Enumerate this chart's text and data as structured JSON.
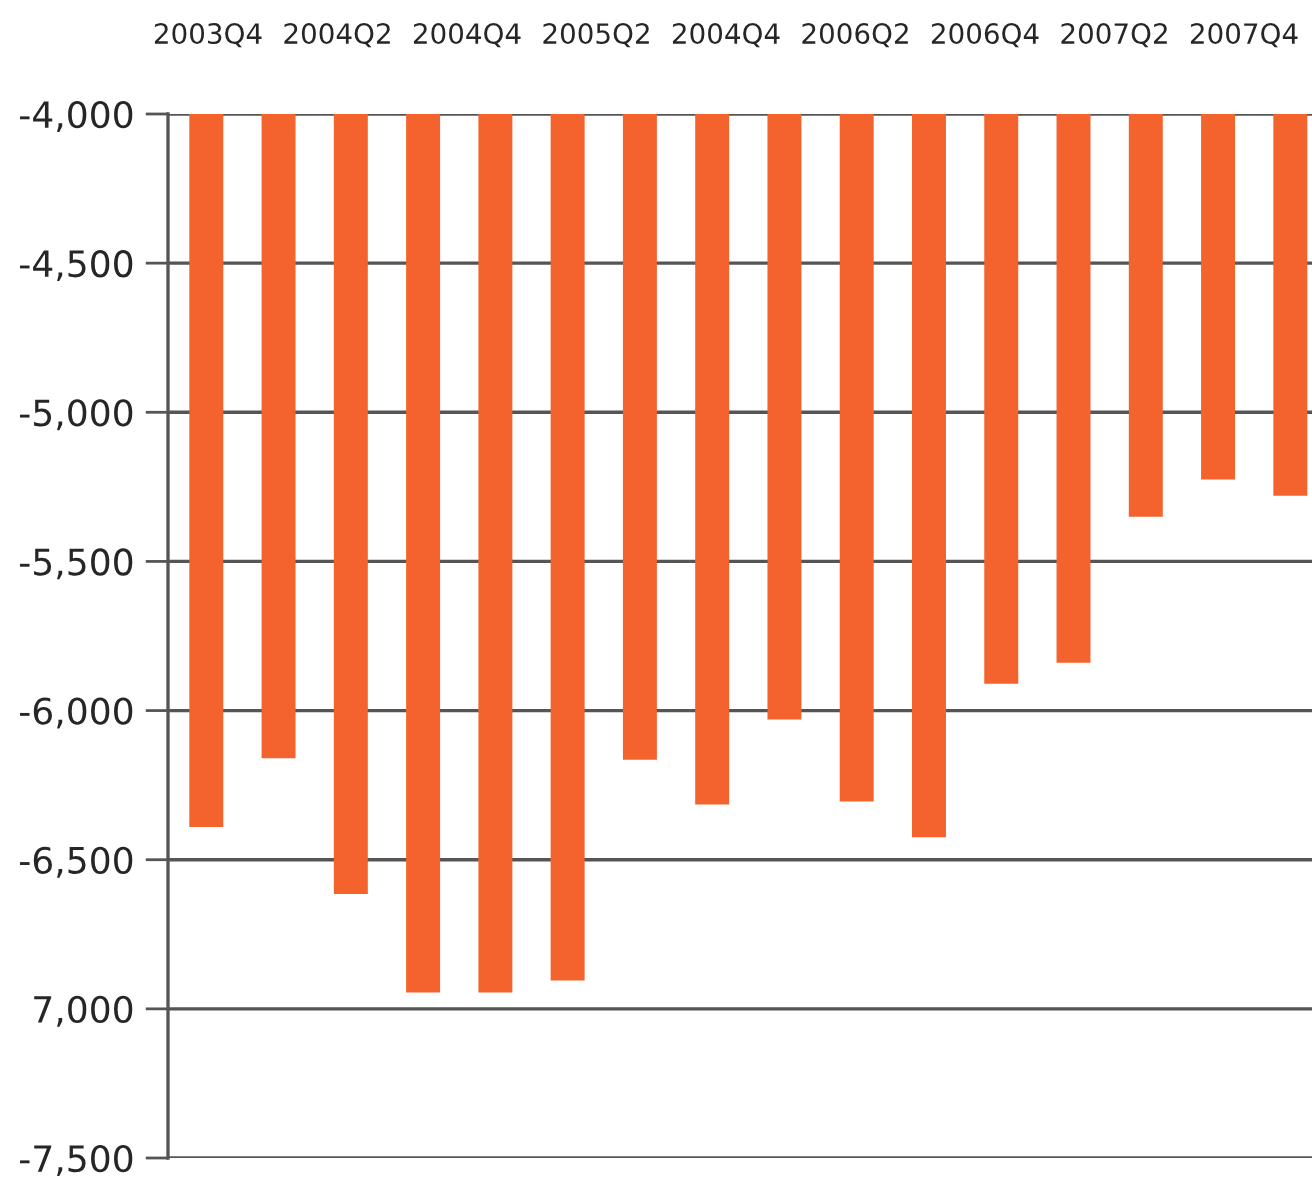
{
  "chart_data": {
    "type": "bar",
    "categories": [
      null,
      null,
      null,
      null,
      null,
      null,
      null,
      null,
      null,
      null,
      null,
      null,
      null,
      null,
      null,
      null
    ],
    "values": [
      -6390,
      -6160,
      -6615,
      -6945,
      -6945,
      -6905,
      -6165,
      -6315,
      -6030,
      -6305,
      -6425,
      -5910,
      -5840,
      -5350,
      -5225,
      -5280
    ],
    "color": "#f4622e",
    "ylim": [
      -7500,
      -4000
    ],
    "yticks": [
      {
        "value": -4000,
        "label": "-4,000"
      },
      {
        "value": -4500,
        "label": "-4,500"
      },
      {
        "value": -5000,
        "label": "-5,000"
      },
      {
        "value": -5500,
        "label": "-5,500"
      },
      {
        "value": -6000,
        "label": "-6,000"
      },
      {
        "value": -6500,
        "label": "-6,500"
      },
      {
        "value": -7000,
        "label": "7,000"
      },
      {
        "value": -7500,
        "label": "-7,500"
      }
    ],
    "annotations": [
      "2003Q4",
      "2004Q2",
      "2004Q4",
      "2005Q2",
      "2004Q4",
      "2006Q2",
      "2006Q4",
      "2007Q2",
      "2007Q4"
    ],
    "grid": "y"
  }
}
